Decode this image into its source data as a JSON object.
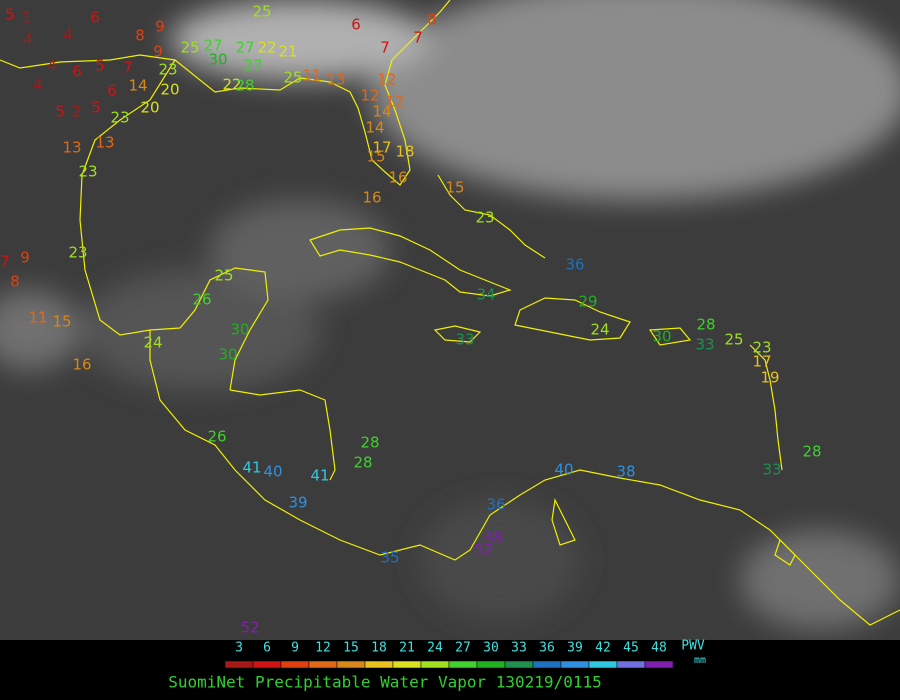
{
  "title": "SuomiNet Precipitable Water Vapor 130219/0115",
  "legend": {
    "label": "PWV",
    "unit": "mm",
    "ticks": [
      3,
      6,
      9,
      12,
      15,
      18,
      21,
      24,
      27,
      30,
      33,
      36,
      39,
      42,
      45,
      48
    ],
    "colors": [
      "#a81818",
      "#d01414",
      "#e04010",
      "#e06818",
      "#d88818",
      "#e8c020",
      "#d8e020",
      "#a0e020",
      "#40d030",
      "#20b020",
      "#209050",
      "#2070c0",
      "#3090e0",
      "#30c8e0",
      "#7070e0",
      "#8020b0"
    ]
  },
  "stations": [
    5,
    1,
    4,
    4,
    6,
    4,
    6,
    5,
    7,
    4,
    5,
    2,
    5,
    6,
    14,
    9,
    8,
    9,
    23,
    20,
    23,
    20,
    13,
    13,
    23,
    25,
    27,
    30,
    27,
    22,
    21,
    27,
    22,
    28,
    25,
    25,
    11,
    13,
    6,
    7,
    7,
    8,
    12,
    12,
    12,
    14,
    14,
    17,
    18,
    15,
    16,
    16,
    15,
    23,
    36,
    34,
    33,
    29,
    24,
    30,
    28,
    33,
    25,
    23,
    17,
    19,
    25,
    26,
    23,
    9,
    8,
    7,
    11,
    15,
    16,
    24,
    30,
    30,
    26,
    41,
    40,
    41,
    28,
    28,
    39,
    35,
    36,
    40,
    38,
    33,
    28,
    48,
    52,
    52
  ]
}
